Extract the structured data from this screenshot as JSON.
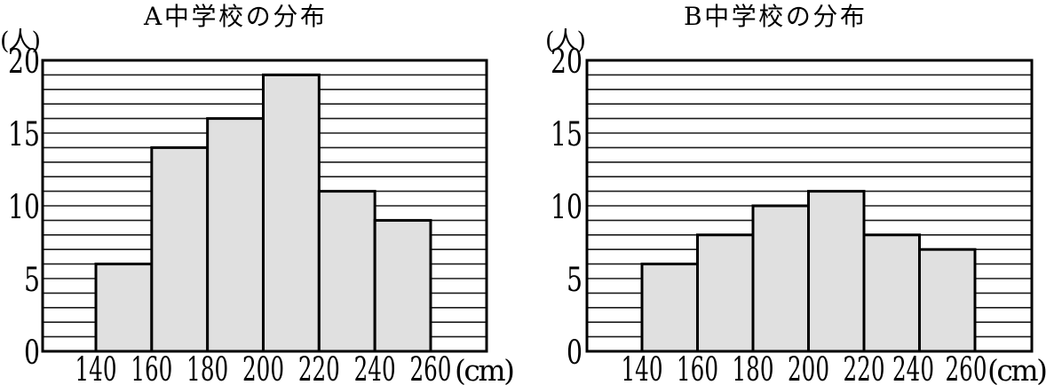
{
  "figure": {
    "type": "double-histogram",
    "background": "#ffffff"
  },
  "chart_data": [
    {
      "type": "bar",
      "subtype": "histogram",
      "title": "A中学校の分布",
      "ylabel": "(人)",
      "xlabel": "(cm)",
      "x_tick_labels": [
        "140",
        "160",
        "180",
        "200",
        "220",
        "240",
        "260"
      ],
      "bin_edges": [
        140,
        160,
        180,
        200,
        220,
        240,
        260
      ],
      "categories": [
        "140-160",
        "160-180",
        "180-200",
        "200-220",
        "220-240",
        "240-260"
      ],
      "values": [
        6,
        14,
        16,
        19,
        11,
        9
      ],
      "ylim": [
        0,
        20
      ],
      "y_ticks": [
        0,
        5,
        10,
        15,
        20
      ],
      "grid_step": 1,
      "grid": "horizontal",
      "legend": "none",
      "bar_fill": "#e0e0e0",
      "bar_stroke": "#000000"
    },
    {
      "type": "bar",
      "subtype": "histogram",
      "title": "B中学校の分布",
      "ylabel": "(人)",
      "xlabel": "(cm)",
      "x_tick_labels": [
        "140",
        "160",
        "180",
        "200",
        "220",
        "240",
        "260"
      ],
      "bin_edges": [
        140,
        160,
        180,
        200,
        220,
        240,
        260
      ],
      "categories": [
        "140-160",
        "160-180",
        "180-200",
        "200-220",
        "220-240",
        "240-260"
      ],
      "values": [
        6,
        8,
        10,
        11,
        8,
        7
      ],
      "ylim": [
        0,
        20
      ],
      "y_ticks": [
        0,
        5,
        10,
        15,
        20
      ],
      "grid_step": 1,
      "grid": "horizontal",
      "legend": "none",
      "bar_fill": "#e0e0e0",
      "bar_stroke": "#000000"
    }
  ],
  "colors": {
    "background": "#ffffff",
    "bar_fill": "#e0e0e0",
    "line": "#000000",
    "grid_line": "#1b1b1b",
    "text": "#000000"
  }
}
